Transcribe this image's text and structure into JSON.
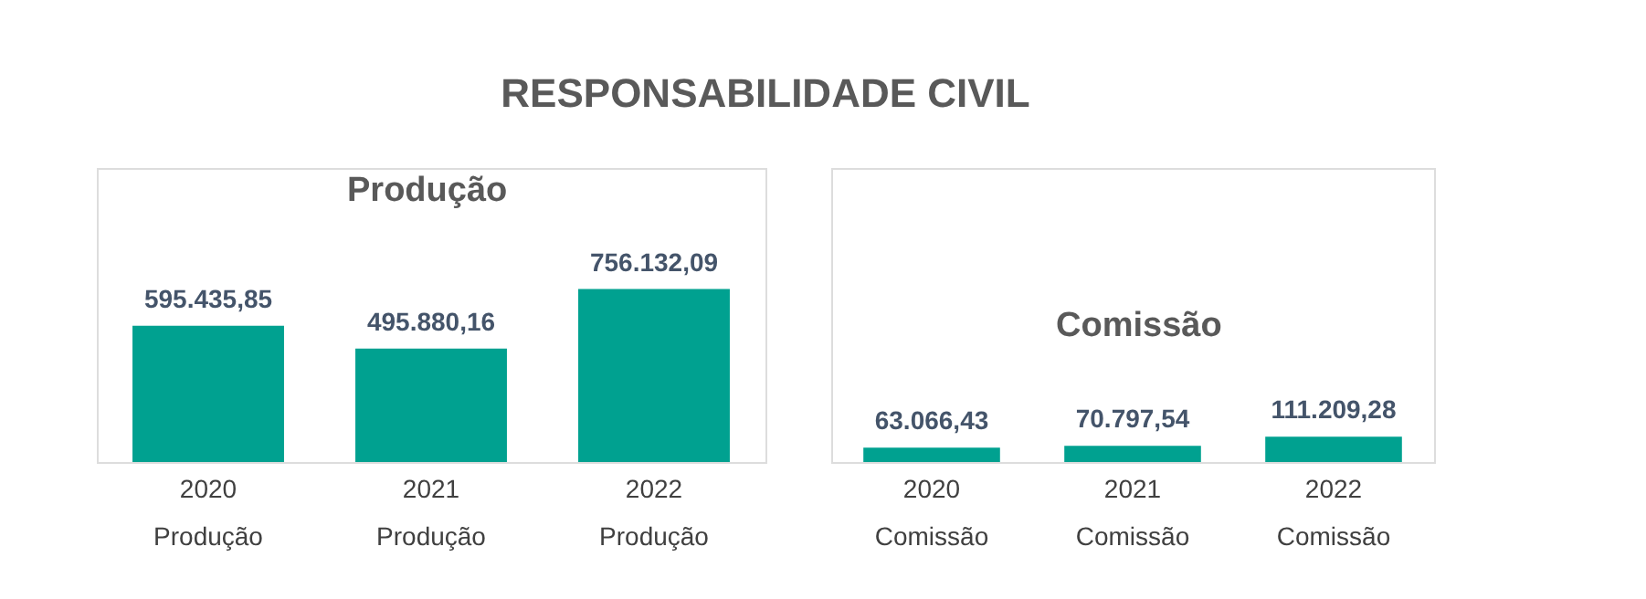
{
  "chart_data": [
    {
      "type": "bar",
      "title": "RESPONSABILIDADE CIVIL",
      "subtitle": "Produção",
      "categories": [
        "2020\nProdução",
        "2021\nProdução",
        "2022\nProdução"
      ],
      "values": [
        595435.85,
        495880.16,
        756132.09
      ],
      "value_labels": [
        "595.435,85",
        "495.880,16",
        "756.132,09"
      ],
      "color": "#00a190"
    },
    {
      "type": "bar",
      "subtitle": "Comissão",
      "categories": [
        "2020\nComissão",
        "2021\nComissão",
        "2022\nComissão"
      ],
      "values": [
        63066.43,
        70797.54,
        111209.28
      ],
      "value_labels": [
        "63.066,43",
        "70.797,54",
        "111.209,28"
      ],
      "color": "#00a190"
    }
  ]
}
